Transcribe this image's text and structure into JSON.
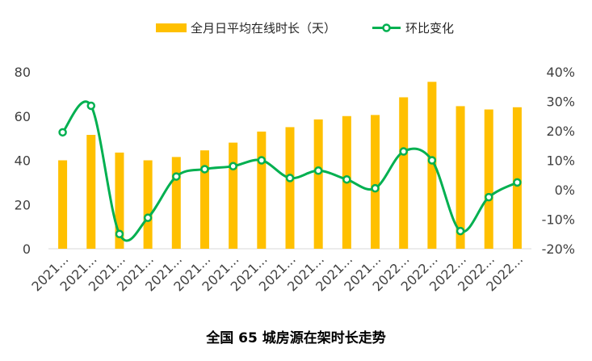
{
  "chart_data": {
    "type": "bar+line",
    "title": "全国 65 城房源在架时长走势",
    "categories": [
      "2021...",
      "2021...",
      "2021...",
      "2021...",
      "2021...",
      "2021...",
      "2021...",
      "2021...",
      "2021...",
      "2021...",
      "2021...",
      "2021...",
      "2022...",
      "2022...",
      "2022...",
      "2022...",
      "2022..."
    ],
    "series": [
      {
        "name": "全月日平均在线时长（天）",
        "kind": "bar",
        "axis": "left",
        "color": "#FFC000",
        "values": [
          40,
          51.5,
          43.5,
          40,
          41.5,
          44.5,
          48,
          53,
          55,
          58.5,
          60,
          60.5,
          68.5,
          75.5,
          64.5,
          63,
          64
        ]
      },
      {
        "name": "环比变化",
        "kind": "line",
        "axis": "right",
        "color": "#00B050",
        "values": [
          19.5,
          28.5,
          -15,
          -9.5,
          4.5,
          7,
          8,
          10,
          4,
          6.5,
          3.5,
          0.5,
          13,
          10,
          -14,
          -2.5,
          2.5
        ]
      }
    ],
    "left_axis": {
      "ylim": [
        0,
        80
      ],
      "ticks": [
        "0",
        "20",
        "40",
        "60",
        "80"
      ]
    },
    "right_axis": {
      "ylim": [
        -20,
        40
      ],
      "ticks": [
        "-20%",
        "-10%",
        "0%",
        "10%",
        "20%",
        "30%",
        "40%"
      ]
    },
    "legend_position": "top-center",
    "grid": false
  }
}
